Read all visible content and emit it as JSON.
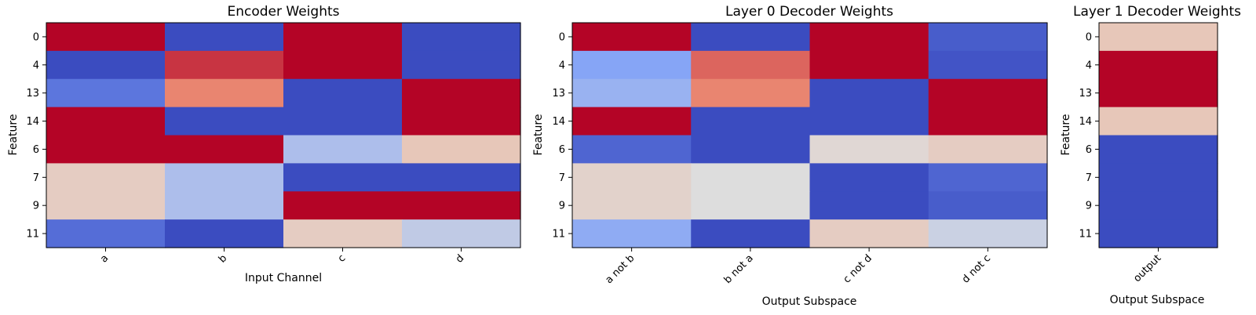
{
  "chart_data": [
    {
      "type": "heatmap",
      "title": "Encoder Weights",
      "xlabel": "Input Channel",
      "ylabel": "Feature",
      "rows": [
        "0",
        "4",
        "13",
        "14",
        "6",
        "7",
        "9",
        "11"
      ],
      "cols": [
        "a",
        "b",
        "c",
        "d"
      ],
      "colormap": "coolwarm",
      "vmin": -1,
      "vmax": 1,
      "values": [
        [
          1.0,
          -1.0,
          1.0,
          -1.0
        ],
        [
          -1.0,
          0.85,
          1.0,
          -1.0
        ],
        [
          -0.75,
          0.6,
          -1.0,
          1.0
        ],
        [
          1.0,
          -1.0,
          -1.0,
          1.0
        ],
        [
          1.0,
          1.0,
          -0.25,
          0.2
        ],
        [
          0.15,
          -0.25,
          -1.0,
          -1.0
        ],
        [
          0.15,
          -0.25,
          1.0,
          1.0
        ],
        [
          -0.8,
          -1.0,
          0.15,
          -0.15
        ]
      ]
    },
    {
      "type": "heatmap",
      "title": "Layer 0 Decoder Weights",
      "xlabel": "Output Subspace",
      "ylabel": "Feature",
      "rows": [
        "0",
        "4",
        "13",
        "14",
        "6",
        "7",
        "9",
        "11"
      ],
      "cols": [
        "a not b",
        "b not a",
        "c not d",
        "d not c"
      ],
      "colormap": "coolwarm",
      "vmin": -1,
      "vmax": 1,
      "values": [
        [
          1.0,
          -1.0,
          1.0,
          -0.9
        ],
        [
          -0.45,
          0.7,
          1.0,
          -0.95
        ],
        [
          -0.35,
          0.6,
          -1.0,
          1.0
        ],
        [
          1.0,
          -1.0,
          -1.0,
          1.0
        ],
        [
          -0.85,
          -1.0,
          0.05,
          0.15
        ],
        [
          0.1,
          0.0,
          -1.0,
          -0.85
        ],
        [
          0.1,
          0.0,
          -1.0,
          -0.9
        ],
        [
          -0.4,
          -1.0,
          0.15,
          -0.1
        ]
      ]
    },
    {
      "type": "heatmap",
      "title": "Layer 1 Decoder Weights",
      "xlabel": "Output Subspace",
      "ylabel": "Feature",
      "rows": [
        "0",
        "4",
        "13",
        "14",
        "6",
        "7",
        "9",
        "11"
      ],
      "cols": [
        "output"
      ],
      "colormap": "coolwarm",
      "vmin": -1,
      "vmax": 1,
      "values": [
        [
          0.2
        ],
        [
          1.0
        ],
        [
          1.0
        ],
        [
          0.2
        ],
        [
          -1.0
        ],
        [
          -1.0
        ],
        [
          -1.0
        ],
        [
          -1.0
        ]
      ]
    }
  ]
}
